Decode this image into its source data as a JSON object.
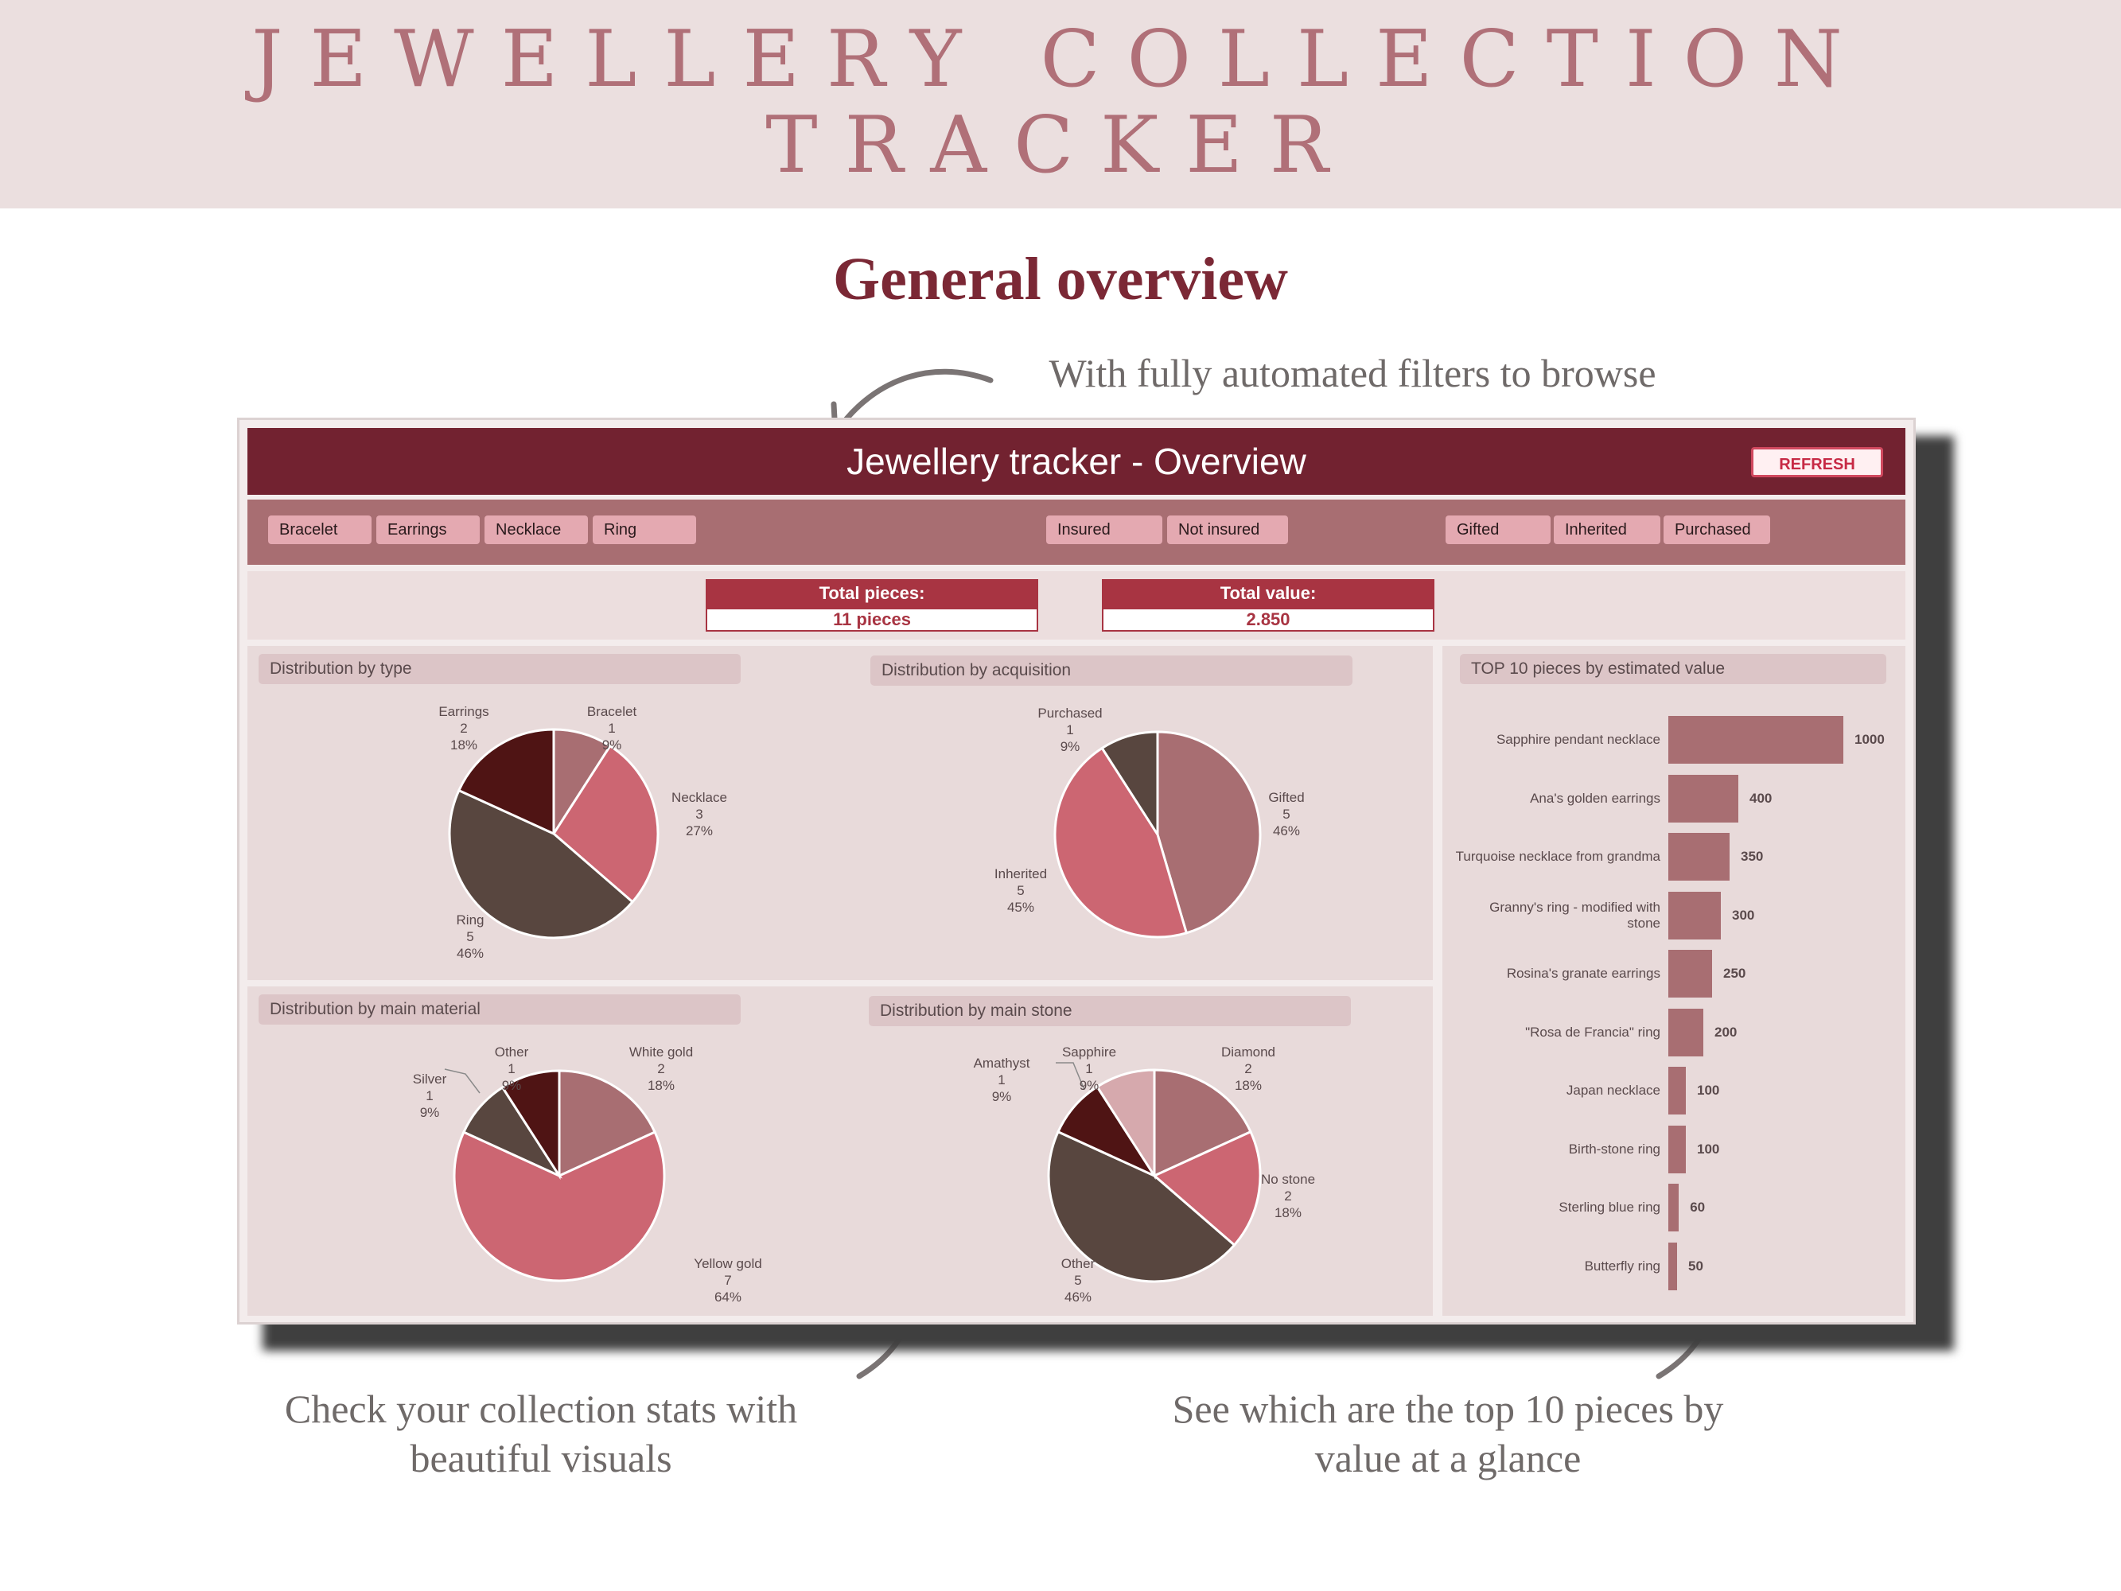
{
  "banner": {
    "title_line1": "JEWELLERY COLLECTION",
    "title_line2": "TRACKER"
  },
  "subtitle": "General overview",
  "callouts": {
    "filters": "With fully automated filters to browse",
    "stats_line1": "Check your collection stats with",
    "stats_line2": "beautiful visuals",
    "top10_line1": "See which are the top 10 pieces by",
    "top10_line2": "value at a glance"
  },
  "dashboard": {
    "title": "Jewellery tracker - Overview",
    "refresh_label": "REFRESH",
    "filters": {
      "type": [
        "Bracelet",
        "Earrings",
        "Necklace",
        "Ring"
      ],
      "insurance": [
        "Insured",
        "Not insured"
      ],
      "acquisition": [
        "Gifted",
        "Inherited",
        "Purchased"
      ]
    },
    "totals": {
      "pieces_label": "Total pieces:",
      "pieces_value": "11 pieces",
      "value_label": "Total value:",
      "value_value": "2.850"
    }
  },
  "colors": {
    "dark_red": "#722230",
    "rose": "#a86e72",
    "pink": "#cc6672",
    "light": "#d6a9ad",
    "brown": "#58463f",
    "maroon": "#4f1414"
  },
  "chart_data": [
    {
      "type": "pie",
      "title": "Distribution by type",
      "slices": [
        {
          "label": "Bracelet",
          "value": 1,
          "pct": "9%",
          "color": "#a86e72"
        },
        {
          "label": "Necklace",
          "value": 3,
          "pct": "27%",
          "color": "#cc6672"
        },
        {
          "label": "Ring",
          "value": 5,
          "pct": "46%",
          "color": "#58463f"
        },
        {
          "label": "Earrings",
          "value": 2,
          "pct": "18%",
          "color": "#4f1414"
        }
      ]
    },
    {
      "type": "pie",
      "title": "Distribution by acquisition",
      "slices": [
        {
          "label": "Gifted",
          "value": 5,
          "pct": "46%",
          "color": "#a86e72"
        },
        {
          "label": "Inherited",
          "value": 5,
          "pct": "45%",
          "color": "#cc6672"
        },
        {
          "label": "Purchased",
          "value": 1,
          "pct": "9%",
          "color": "#58463f"
        }
      ]
    },
    {
      "type": "pie",
      "title": "Distribution by main material",
      "slices": [
        {
          "label": "White gold",
          "value": 2,
          "pct": "18%",
          "color": "#a86e72"
        },
        {
          "label": "Yellow gold",
          "value": 7,
          "pct": "64%",
          "color": "#cc6672"
        },
        {
          "label": "Silver",
          "value": 1,
          "pct": "9%",
          "color": "#58463f"
        },
        {
          "label": "Other",
          "value": 1,
          "pct": "9%",
          "color": "#4f1414"
        }
      ]
    },
    {
      "type": "pie",
      "title": "Distribution by main stone",
      "slices": [
        {
          "label": "Diamond",
          "value": 2,
          "pct": "18%",
          "color": "#a86e72"
        },
        {
          "label": "No stone",
          "value": 2,
          "pct": "18%",
          "color": "#cc6672"
        },
        {
          "label": "Other",
          "value": 5,
          "pct": "46%",
          "color": "#58463f"
        },
        {
          "label": "Amathyst",
          "value": 1,
          "pct": "9%",
          "color": "#4f1414"
        },
        {
          "label": "Sapphire",
          "value": 1,
          "pct": "9%",
          "color": "#d6a9ad"
        }
      ]
    },
    {
      "type": "bar",
      "orientation": "horizontal",
      "title": "TOP 10 pieces by estimated value",
      "categories": [
        "Sapphire pendant necklace",
        "Ana's golden earrings",
        "Turquoise necklace from grandma",
        "Granny's ring - modified with stone",
        "Rosina's granate earrings",
        "\"Rosa de Francia\" ring",
        "Japan necklace",
        "Birth-stone ring",
        "Sterling blue ring",
        "Butterfly ring"
      ],
      "values": [
        1000,
        400,
        350,
        300,
        250,
        200,
        100,
        100,
        60,
        50
      ],
      "xlim": [
        0,
        1000
      ]
    }
  ]
}
